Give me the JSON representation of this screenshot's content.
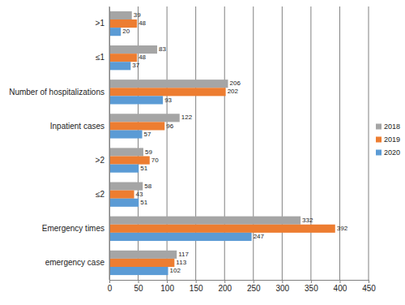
{
  "chart_data": {
    "type": "bar",
    "orientation": "horizontal",
    "categories": [
      "emergency case",
      "Emergency times",
      "≤2",
      ">2",
      "Inpatient cases",
      "Number of hospitalizations",
      "≤1",
      ">1"
    ],
    "series": [
      {
        "name": "2018",
        "color": "#a5a5a5",
        "values": [
          117,
          332,
          58,
          59,
          122,
          206,
          83,
          39
        ]
      },
      {
        "name": "2019",
        "color": "#ed7d31",
        "values": [
          113,
          392,
          43,
          70,
          96,
          202,
          48,
          48
        ]
      },
      {
        "name": "2020",
        "color": "#5b9bd5",
        "values": [
          102,
          247,
          51,
          51,
          57,
          93,
          37,
          20
        ]
      }
    ],
    "xlim": [
      0,
      450
    ],
    "xticks": [
      0,
      50,
      100,
      150,
      200,
      250,
      300,
      350,
      400,
      450
    ],
    "grid": true,
    "data_labels": true,
    "legend": "right"
  }
}
